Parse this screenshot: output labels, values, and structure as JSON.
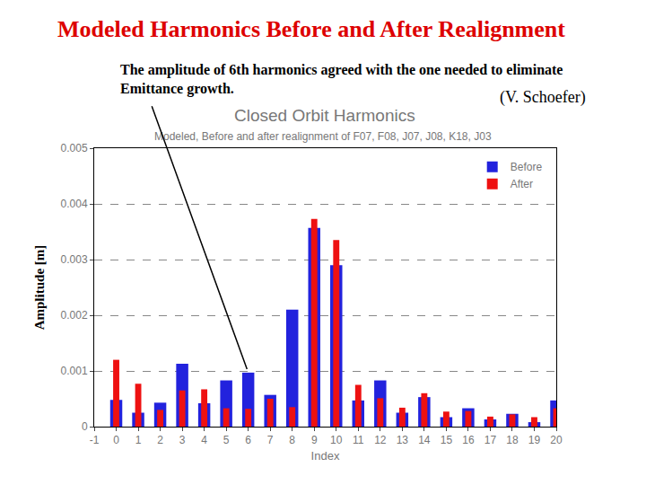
{
  "chart_data": {
    "type": "bar",
    "title": "Closed Orbit Harmonics",
    "subtitle": "Modeled, Before and after realignment of F07, F08, J07, J08, K18, J03",
    "x_label": "Index",
    "y_label": "Amplitude [m]",
    "annotations": [
      "Modeled Harmonics Before and After Realignment",
      "The amplitude of 6th harmonics agreed with the one needed to eliminate",
      "Emittance growth.",
      "(V. Schoefer)"
    ],
    "x": [
      0,
      1,
      2,
      3,
      4,
      5,
      6,
      7,
      8,
      9,
      10,
      11,
      12,
      13,
      14,
      15,
      16,
      17,
      18,
      19,
      20
    ],
    "series": [
      {
        "name": "Before",
        "color": "#2222dd",
        "values": [
          0.00048,
          0.00025,
          0.00043,
          0.00113,
          0.00042,
          0.00083,
          0.00097,
          0.00057,
          0.0021,
          0.00357,
          0.0029,
          0.00047,
          0.00083,
          0.00025,
          0.00053,
          0.00017,
          0.00033,
          0.00013,
          0.00023,
          8e-05,
          0.00047
        ]
      },
      {
        "name": "After",
        "color": "#ee1111",
        "values": [
          0.0012,
          0.00077,
          0.0003,
          0.00065,
          0.00067,
          0.00033,
          0.00032,
          0.0005,
          0.00035,
          0.00373,
          0.00335,
          0.00075,
          0.00051,
          0.00034,
          0.0006,
          0.00027,
          0.00028,
          0.00018,
          0.00022,
          0.00017,
          0.00033
        ]
      }
    ],
    "xlim": [
      -1,
      20
    ],
    "xticks": [
      -1,
      0,
      1,
      2,
      3,
      4,
      5,
      6,
      7,
      8,
      9,
      10,
      11,
      12,
      13,
      14,
      15,
      16,
      17,
      18,
      19,
      20
    ],
    "ylim": [
      0,
      0.005
    ],
    "yticks": [
      0,
      0.001,
      0.002,
      0.003,
      0.004,
      0.005
    ],
    "grid": true,
    "legend": "top right"
  }
}
